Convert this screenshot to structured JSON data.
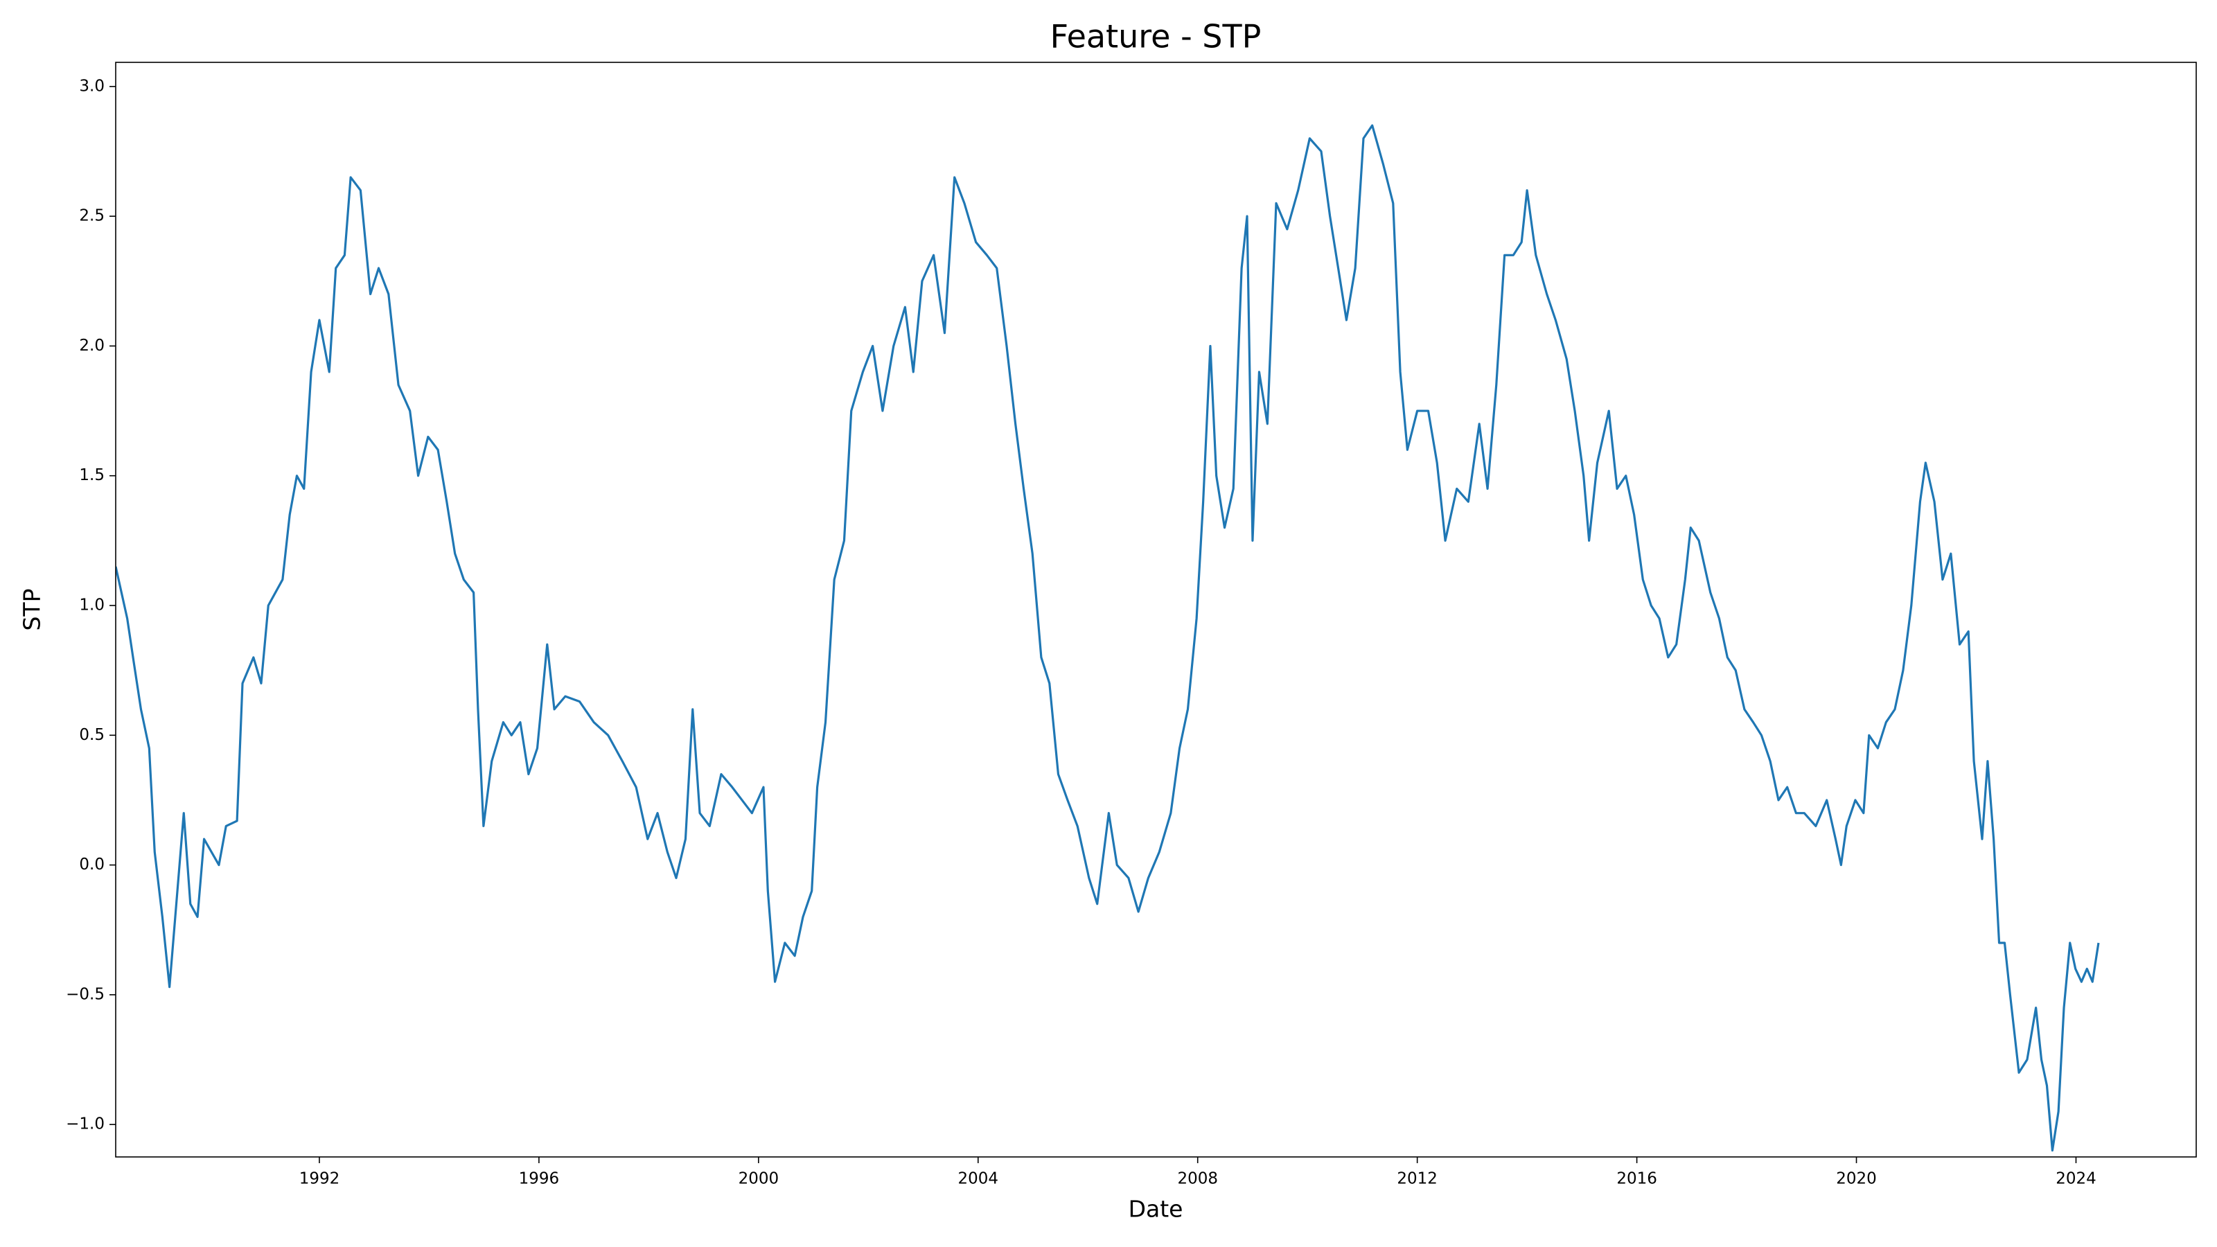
{
  "chart_data": {
    "type": "line",
    "title": "Feature - STP",
    "x_label": "Date",
    "y_label": "STP",
    "x": [
      1988.29,
      1988.5,
      1988.62,
      1988.75,
      1988.9,
      1989.0,
      1989.14,
      1989.27,
      1989.53,
      1989.65,
      1989.78,
      1989.9,
      1990.17,
      1990.3,
      1990.5,
      1990.6,
      1990.8,
      1990.94,
      1991.07,
      1991.33,
      1991.46,
      1991.59,
      1991.72,
      1991.85,
      1992.0,
      1992.18,
      1992.3,
      1992.46,
      1992.57,
      1992.75,
      1992.93,
      1993.08,
      1993.26,
      1993.44,
      1993.65,
      1993.8,
      1993.98,
      1994.16,
      1994.32,
      1994.47,
      1994.63,
      1994.81,
      1994.89,
      1994.99,
      1995.14,
      1995.35,
      1995.5,
      1995.66,
      1995.81,
      1995.97,
      1996.15,
      1996.28,
      1996.48,
      1996.74,
      1997.0,
      1997.26,
      1997.52,
      1997.77,
      1997.98,
      1998.16,
      1998.34,
      1998.5,
      1998.67,
      1998.8,
      1998.93,
      1999.11,
      1999.32,
      1999.52,
      1999.7,
      1999.88,
      2000.09,
      2000.17,
      2000.3,
      2000.48,
      2000.66,
      2000.81,
      2000.97,
      2001.07,
      2001.22,
      2001.38,
      2001.56,
      2001.69,
      2001.9,
      2002.08,
      2002.26,
      2002.46,
      2002.67,
      2002.82,
      2002.98,
      2003.19,
      2003.39,
      2003.57,
      2003.75,
      2003.96,
      2004.16,
      2004.34,
      2004.52,
      2004.68,
      2004.83,
      2004.99,
      2005.15,
      2005.3,
      2005.46,
      2005.63,
      2005.81,
      2006.02,
      2006.17,
      2006.38,
      2006.53,
      2006.74,
      2006.92,
      2007.1,
      2007.3,
      2007.51,
      2007.67,
      2007.82,
      2007.98,
      2008.1,
      2008.23,
      2008.34,
      2008.49,
      2008.65,
      2008.8,
      2008.9,
      2009.0,
      2009.12,
      2009.27,
      2009.43,
      2009.63,
      2009.83,
      2010.04,
      2010.25,
      2010.41,
      2010.56,
      2010.71,
      2010.87,
      2011.02,
      2011.18,
      2011.38,
      2011.56,
      2011.69,
      2011.82,
      2012.0,
      2012.2,
      2012.36,
      2012.51,
      2012.72,
      2012.93,
      2013.13,
      2013.28,
      2013.44,
      2013.59,
      2013.75,
      2013.9,
      2014.0,
      2014.16,
      2014.36,
      2014.52,
      2014.72,
      2014.87,
      2015.03,
      2015.13,
      2015.28,
      2015.49,
      2015.64,
      2015.8,
      2015.95,
      2016.11,
      2016.26,
      2016.41,
      2016.57,
      2016.72,
      2016.88,
      2016.98,
      2017.13,
      2017.34,
      2017.5,
      2017.65,
      2017.8,
      2017.96,
      2018.12,
      2018.27,
      2018.43,
      2018.58,
      2018.74,
      2018.9,
      2019.05,
      2019.26,
      2019.46,
      2019.62,
      2019.72,
      2019.82,
      2019.98,
      2020.13,
      2020.23,
      2020.39,
      2020.54,
      2020.7,
      2020.85,
      2021.0,
      2021.16,
      2021.26,
      2021.42,
      2021.57,
      2021.72,
      2021.88,
      2022.04,
      2022.14,
      2022.29,
      2022.39,
      2022.5,
      2022.6,
      2022.7,
      2022.8,
      2022.96,
      2023.11,
      2023.27,
      2023.37,
      2023.47,
      2023.57,
      2023.68,
      2023.78,
      2023.89,
      2023.99,
      2024.1,
      2024.2,
      2024.3,
      2024.41
    ],
    "series": [
      {
        "name": "STP",
        "color": "#1f77b4",
        "values": [
          1.15,
          0.95,
          0.78,
          0.6,
          0.45,
          0.05,
          -0.2,
          -0.47,
          0.2,
          -0.15,
          -0.2,
          0.1,
          0.0,
          0.15,
          0.17,
          0.7,
          0.8,
          0.7,
          1.0,
          1.1,
          1.35,
          1.5,
          1.45,
          1.9,
          2.1,
          1.9,
          2.3,
          2.35,
          2.65,
          2.6,
          2.2,
          2.3,
          2.2,
          1.85,
          1.75,
          1.5,
          1.65,
          1.6,
          1.4,
          1.2,
          1.1,
          1.05,
          0.6,
          0.15,
          0.4,
          0.55,
          0.5,
          0.55,
          0.35,
          0.45,
          0.85,
          0.6,
          0.65,
          0.63,
          0.55,
          0.5,
          0.4,
          0.3,
          0.1,
          0.2,
          0.05,
          -0.05,
          0.1,
          0.6,
          0.2,
          0.15,
          0.35,
          0.3,
          0.25,
          0.2,
          0.3,
          -0.1,
          -0.45,
          -0.3,
          -0.35,
          -0.2,
          -0.1,
          0.3,
          0.55,
          1.1,
          1.25,
          1.75,
          1.9,
          2.0,
          1.75,
          2.0,
          2.15,
          1.9,
          2.25,
          2.35,
          2.05,
          2.65,
          2.55,
          2.4,
          2.35,
          2.3,
          2.0,
          1.7,
          1.45,
          1.2,
          0.8,
          0.7,
          0.35,
          0.25,
          0.15,
          -0.05,
          -0.15,
          0.2,
          0.0,
          -0.05,
          -0.18,
          -0.05,
          0.05,
          0.2,
          0.45,
          0.6,
          0.95,
          1.4,
          2.0,
          1.5,
          1.3,
          1.45,
          2.3,
          2.5,
          1.25,
          1.9,
          1.7,
          2.55,
          2.45,
          2.6,
          2.8,
          2.75,
          2.5,
          2.3,
          2.1,
          2.3,
          2.8,
          2.85,
          2.7,
          2.55,
          1.9,
          1.6,
          1.75,
          1.75,
          1.55,
          1.25,
          1.45,
          1.4,
          1.7,
          1.45,
          1.85,
          2.35,
          2.35,
          2.4,
          2.6,
          2.35,
          2.2,
          2.1,
          1.95,
          1.75,
          1.5,
          1.25,
          1.55,
          1.75,
          1.45,
          1.5,
          1.35,
          1.1,
          1.0,
          0.95,
          0.8,
          0.85,
          1.1,
          1.3,
          1.25,
          1.05,
          0.95,
          0.8,
          0.75,
          0.6,
          0.55,
          0.5,
          0.4,
          0.25,
          0.3,
          0.2,
          0.2,
          0.15,
          0.25,
          0.1,
          0.0,
          0.15,
          0.25,
          0.2,
          0.5,
          0.45,
          0.55,
          0.6,
          0.75,
          1.0,
          1.4,
          1.55,
          1.4,
          1.1,
          1.2,
          0.85,
          0.9,
          0.4,
          0.1,
          0.4,
          0.1,
          -0.3,
          -0.3,
          -0.5,
          -0.8,
          -0.75,
          -0.55,
          -0.75,
          -0.85,
          -1.1,
          -0.95,
          -0.55,
          -0.3,
          -0.4,
          -0.45,
          -0.4,
          -0.45,
          -0.3
        ]
      }
    ],
    "xlim": [
      1988.29,
      2026.19
    ],
    "xticks": [
      1992,
      1996,
      2000,
      2004,
      2008,
      2012,
      2016,
      2020,
      2024
    ],
    "ylim": [
      -1.125,
      3.093
    ],
    "yticks": [
      {
        "value": -1,
        "label": "−1.0"
      },
      {
        "value": -0.5,
        "label": "−0.5"
      },
      {
        "value": 0,
        "label": "0.0"
      },
      0.5,
      {
        "value": 1,
        "label": "1.0"
      },
      1.5,
      {
        "value": 2,
        "label": "2.0"
      },
      2.5,
      {
        "value": 3,
        "label": "3.0"
      }
    ],
    "grid": false
  }
}
